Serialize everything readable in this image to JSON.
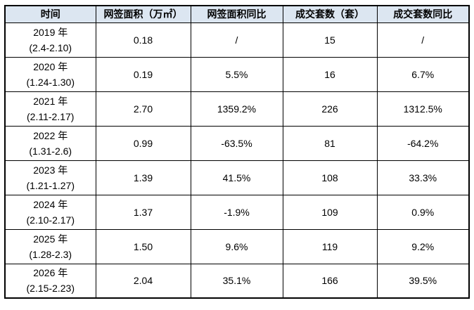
{
  "colors": {
    "header_bg": "#dce6f1",
    "border": "#000000",
    "text": "#000000"
  },
  "table": {
    "headers": [
      "时间",
      "网签面积（万㎡）",
      "网签面积同比",
      "成交套数（套）",
      "成交套数同比"
    ],
    "rows": [
      {
        "year": "2019 年",
        "range": "(2.4-2.10)",
        "area": "0.18",
        "area_yoy": "/",
        "deals": "15",
        "deals_yoy": "/"
      },
      {
        "year": "2020 年",
        "range": "(1.24-1.30)",
        "area": "0.19",
        "area_yoy": "5.5%",
        "deals": "16",
        "deals_yoy": "6.7%"
      },
      {
        "year": "2021 年",
        "range": "(2.11-2.17)",
        "area": "2.70",
        "area_yoy": "1359.2%",
        "deals": "226",
        "deals_yoy": "1312.5%"
      },
      {
        "year": "2022 年",
        "range": "(1.31-2.6)",
        "area": "0.99",
        "area_yoy": "-63.5%",
        "deals": "81",
        "deals_yoy": "-64.2%"
      },
      {
        "year": "2023 年",
        "range": "(1.21-1.27)",
        "area": "1.39",
        "area_yoy": "41.5%",
        "deals": "108",
        "deals_yoy": "33.3%"
      },
      {
        "year": "2024 年",
        "range": "(2.10-2.17)",
        "area": "1.37",
        "area_yoy": "-1.9%",
        "deals": "109",
        "deals_yoy": "0.9%"
      },
      {
        "year": "2025 年",
        "range": "(1.28-2.3)",
        "area": "1.50",
        "area_yoy": "9.6%",
        "deals": "119",
        "deals_yoy": "9.2%"
      },
      {
        "year": "2026 年",
        "range": "(2.15-2.23)",
        "area": "2.04",
        "area_yoy": "35.1%",
        "deals": "166",
        "deals_yoy": "39.5%"
      }
    ]
  },
  "chart_data": {
    "type": "table",
    "title": "",
    "columns": [
      "时间",
      "网签面积（万㎡）",
      "网签面积同比",
      "成交套数（套）",
      "成交套数同比"
    ],
    "years": [
      "2019",
      "2020",
      "2021",
      "2022",
      "2023",
      "2024",
      "2025",
      "2026"
    ],
    "area_wan_sqm": [
      0.18,
      0.19,
      2.7,
      0.99,
      1.39,
      1.37,
      1.5,
      2.04
    ],
    "area_yoy_pct": [
      null,
      5.5,
      1359.2,
      -63.5,
      41.5,
      -1.9,
      9.6,
      35.1
    ],
    "deals_units": [
      15,
      16,
      226,
      81,
      108,
      109,
      119,
      166
    ],
    "deals_yoy_pct": [
      null,
      6.7,
      1312.5,
      -64.2,
      33.3,
      0.9,
      9.2,
      39.5
    ]
  }
}
